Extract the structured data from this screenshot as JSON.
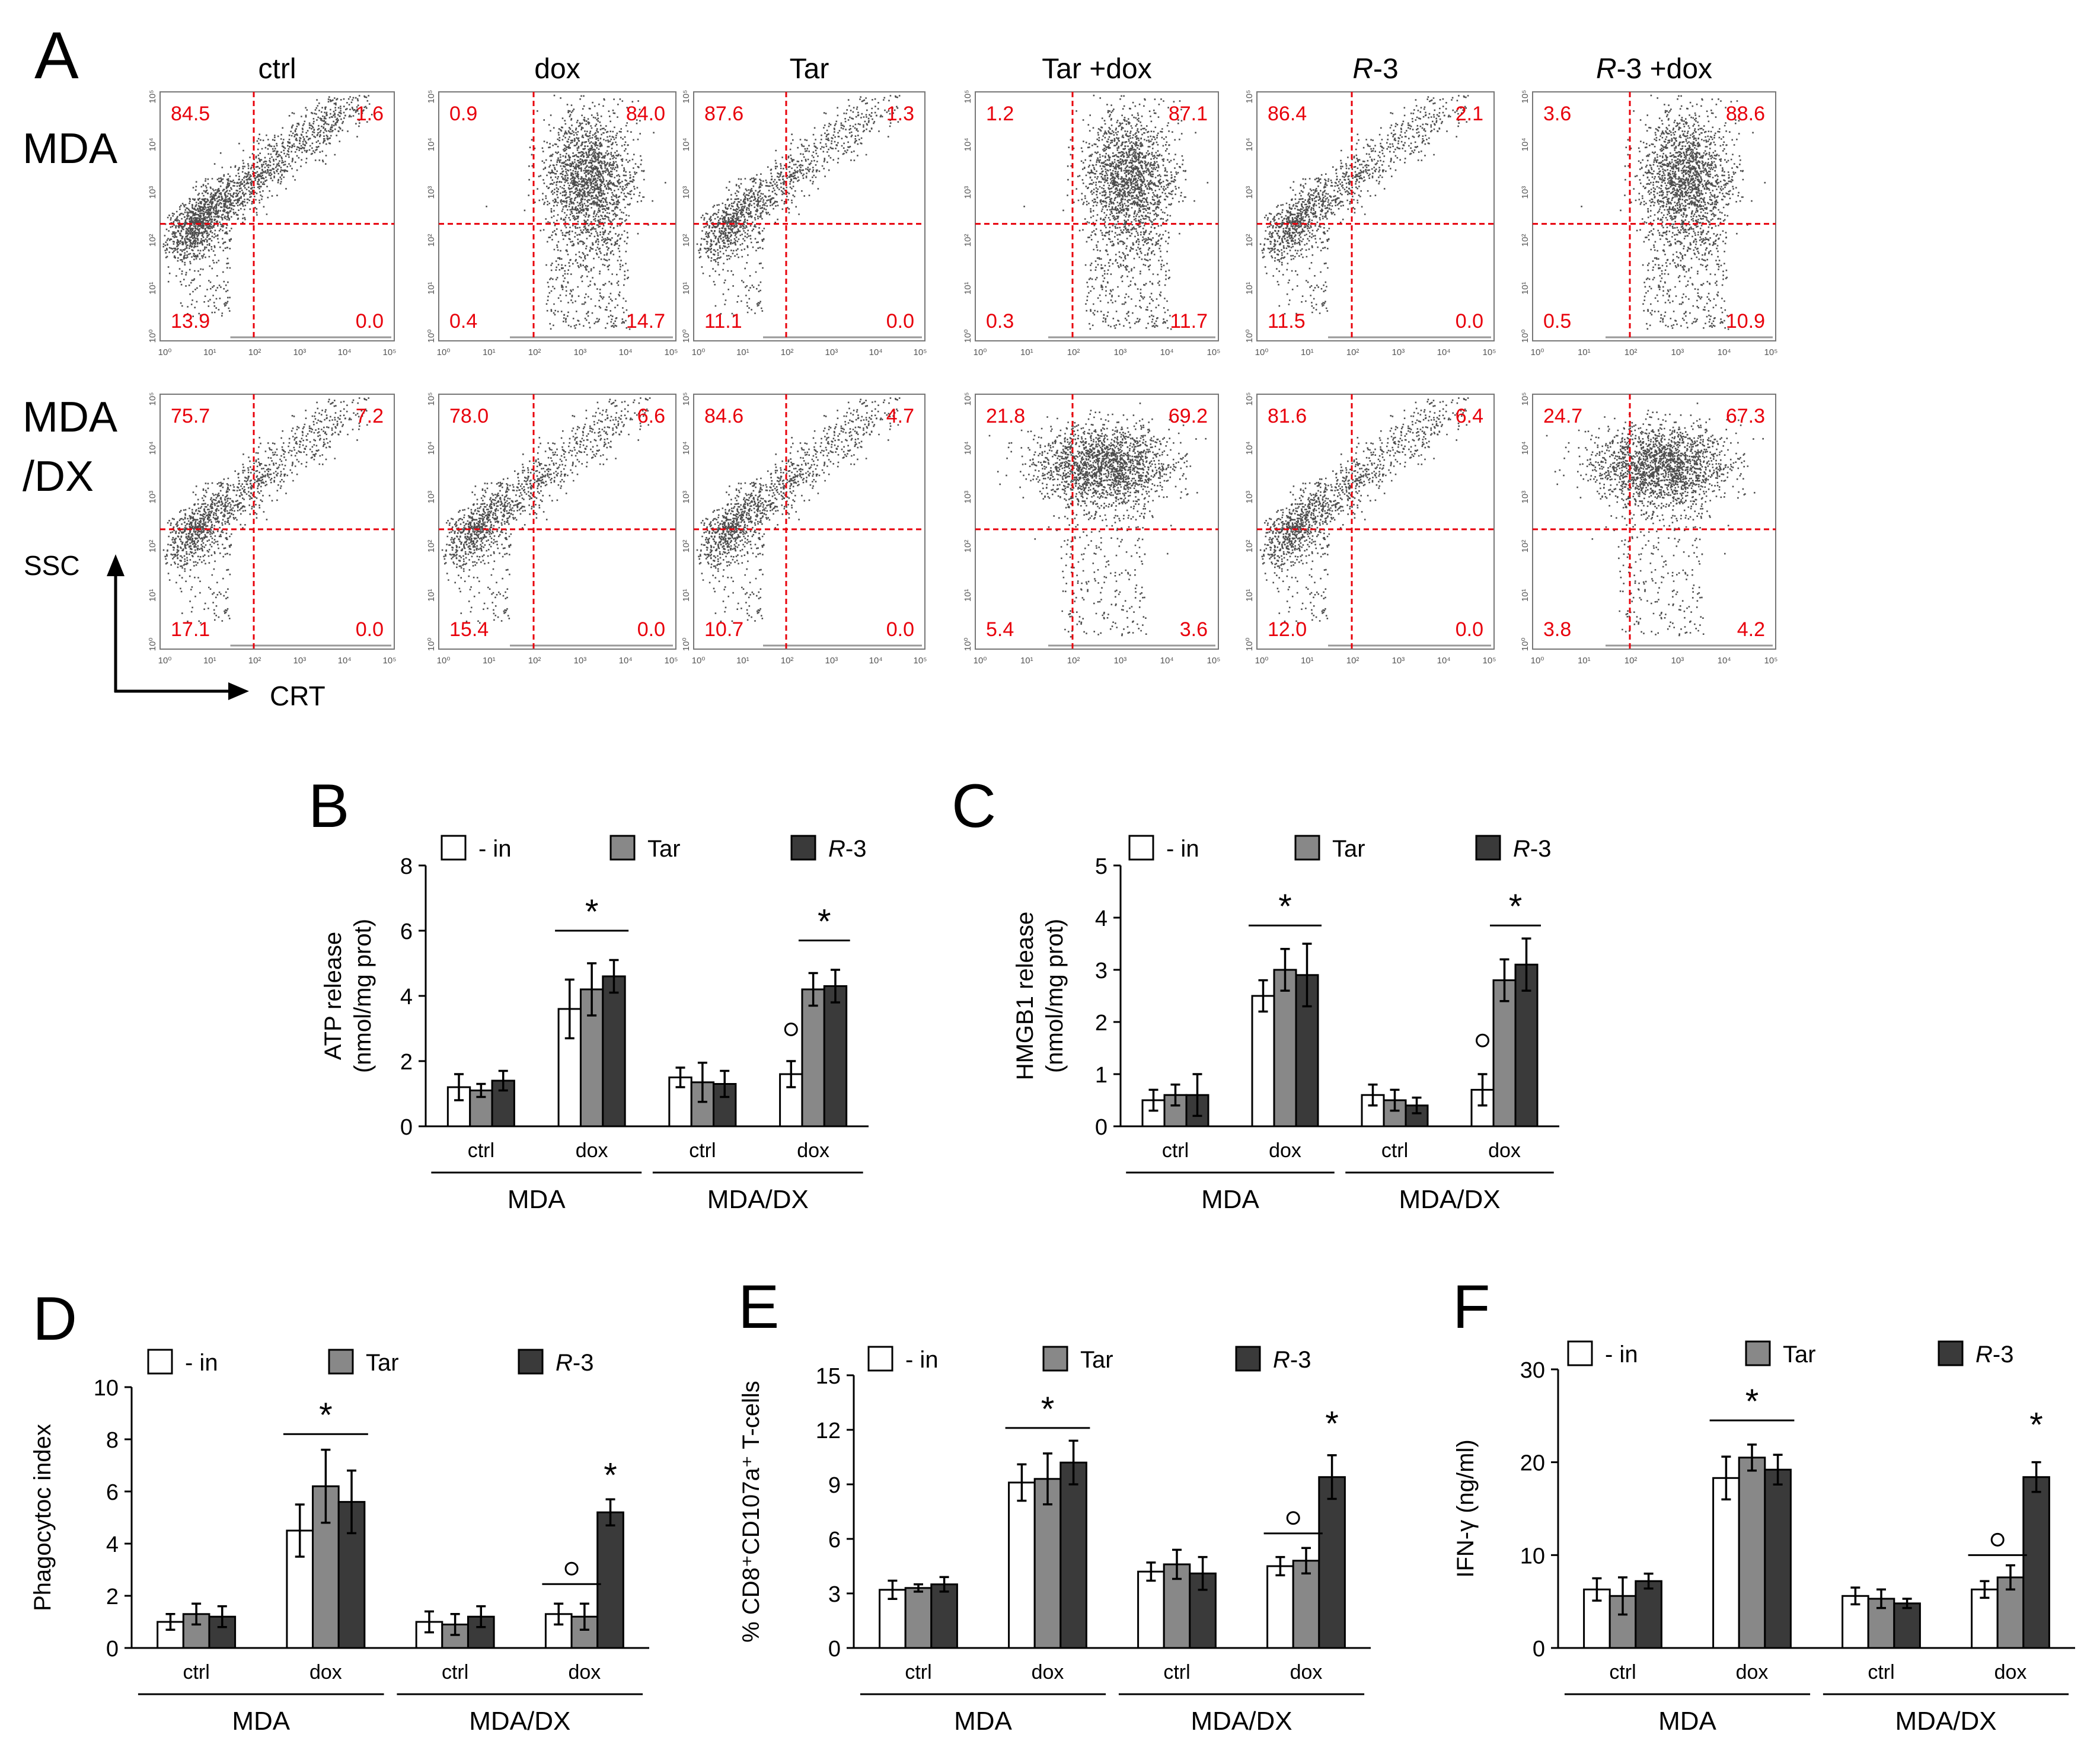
{
  "panel_a": {
    "letter": "A",
    "columns": [
      "ctrl",
      "dox",
      "Tar",
      "Tar +dox",
      "R-3",
      "R-3 +dox"
    ],
    "row_labels": [
      [
        "MDA"
      ],
      [
        "MDA",
        "/DX"
      ]
    ],
    "y_axis_label": "SSC",
    "x_axis_label": "CRT",
    "tick_labels": [
      "10⁰",
      "10¹",
      "10²",
      "10³",
      "10⁴",
      "10⁵"
    ],
    "quadrant_color": "#e8000b",
    "quadrants": [
      [
        {
          "ul": "84.5",
          "ur": "1.6",
          "ll": "13.9",
          "lr": "0.0",
          "pattern": "diag"
        },
        {
          "ul": "0.9",
          "ur": "84.0",
          "ll": "0.4",
          "lr": "14.7",
          "pattern": "right"
        },
        {
          "ul": "87.6",
          "ur": "1.3",
          "ll": "11.1",
          "lr": "0.0",
          "pattern": "diag"
        },
        {
          "ul": "1.2",
          "ur": "87.1",
          "ll": "0.3",
          "lr": "11.7",
          "pattern": "right"
        },
        {
          "ul": "86.4",
          "ur": "2.1",
          "ll": "11.5",
          "lr": "0.0",
          "pattern": "diag"
        },
        {
          "ul": "3.6",
          "ur": "88.6",
          "ll": "0.5",
          "lr": "10.9",
          "pattern": "right"
        }
      ],
      [
        {
          "ul": "75.7",
          "ur": "7.2",
          "ll": "17.1",
          "lr": "0.0",
          "pattern": "diag"
        },
        {
          "ul": "78.0",
          "ur": "6.6",
          "ll": "15.4",
          "lr": "0.0",
          "pattern": "diag"
        },
        {
          "ul": "84.6",
          "ur": "4.7",
          "ll": "10.7",
          "lr": "0.0",
          "pattern": "diag"
        },
        {
          "ul": "21.8",
          "ur": "69.2",
          "ll": "5.4",
          "lr": "3.6",
          "pattern": "center"
        },
        {
          "ul": "81.6",
          "ur": "6.4",
          "ll": "12.0",
          "lr": "0.0",
          "pattern": "diag"
        },
        {
          "ul": "24.7",
          "ur": "67.3",
          "ll": "3.8",
          "lr": "4.2",
          "pattern": "center"
        }
      ]
    ]
  },
  "chart_data": [
    {
      "panel": "B",
      "type": "bar",
      "ylabel": [
        "ATP release",
        "(nmol/mg prot)"
      ],
      "ylim": [
        0,
        8
      ],
      "yticks": [
        "0",
        "2",
        "4",
        "6",
        "8"
      ],
      "legend": [
        "- in",
        "Tar",
        "R-3"
      ],
      "categories": [
        "ctrl",
        "dox",
        "ctrl",
        "dox"
      ],
      "groups": [
        "MDA",
        "MDA/DX"
      ],
      "series": [
        {
          "name": "- in",
          "color": "#ffffff",
          "values": [
            1.2,
            3.6,
            1.5,
            1.6
          ],
          "errors": [
            0.4,
            0.9,
            0.3,
            0.4
          ]
        },
        {
          "name": "Tar",
          "color": "#888888",
          "values": [
            1.1,
            4.2,
            1.35,
            4.2
          ],
          "errors": [
            0.2,
            0.8,
            0.6,
            0.5
          ]
        },
        {
          "name": "R-3",
          "color": "#3a3a3a",
          "values": [
            1.4,
            4.6,
            1.3,
            4.3
          ],
          "errors": [
            0.3,
            0.5,
            0.4,
            0.5
          ]
        }
      ],
      "annotations": [
        {
          "text": "*",
          "cat_from": 1,
          "cat_to": 1,
          "bar_from": 0,
          "bar_to": 2,
          "y": 6.0,
          "line": true
        },
        {
          "text": "*",
          "cat_from": 3,
          "cat_to": 3,
          "bar_from": 1,
          "bar_to": 2,
          "y": 5.7,
          "line": true
        },
        {
          "text": "°",
          "cat_from": 3,
          "cat_to": 3,
          "bar_from": 0,
          "bar_to": 0,
          "y": 2.5,
          "line": false
        }
      ]
    },
    {
      "panel": "C",
      "type": "bar",
      "ylabel": [
        "HMGB1 release",
        "(nmol/mg prot)"
      ],
      "ylim": [
        0,
        5
      ],
      "yticks": [
        "0",
        "1",
        "2",
        "3",
        "4",
        "5"
      ],
      "legend": [
        "- in",
        "Tar",
        "R-3"
      ],
      "categories": [
        "ctrl",
        "dox",
        "ctrl",
        "dox"
      ],
      "groups": [
        "MDA",
        "MDA/DX"
      ],
      "series": [
        {
          "name": "- in",
          "color": "#ffffff",
          "values": [
            0.5,
            2.5,
            0.6,
            0.7
          ],
          "errors": [
            0.2,
            0.3,
            0.2,
            0.3
          ]
        },
        {
          "name": "Tar",
          "color": "#888888",
          "values": [
            0.6,
            3.0,
            0.5,
            2.8
          ],
          "errors": [
            0.2,
            0.4,
            0.2,
            0.4
          ]
        },
        {
          "name": "R-3",
          "color": "#3a3a3a",
          "values": [
            0.6,
            2.9,
            0.4,
            3.1
          ],
          "errors": [
            0.4,
            0.6,
            0.15,
            0.5
          ]
        }
      ],
      "annotations": [
        {
          "text": "*",
          "cat_from": 1,
          "cat_to": 1,
          "bar_from": 0,
          "bar_to": 2,
          "y": 3.85,
          "line": true
        },
        {
          "text": "*",
          "cat_from": 3,
          "cat_to": 3,
          "bar_from": 1,
          "bar_to": 2,
          "y": 3.85,
          "line": true
        },
        {
          "text": "°",
          "cat_from": 3,
          "cat_to": 3,
          "bar_from": 0,
          "bar_to": 0,
          "y": 1.35,
          "line": false
        }
      ]
    },
    {
      "panel": "D",
      "type": "bar",
      "ylabel": [
        "Phagocytoc index"
      ],
      "ylim": [
        0,
        10
      ],
      "yticks": [
        "0",
        "2",
        "4",
        "6",
        "8",
        "10"
      ],
      "legend": [
        "- in",
        "Tar",
        "R-3"
      ],
      "categories": [
        "ctrl",
        "dox",
        "ctrl",
        "dox"
      ],
      "groups": [
        "MDA",
        "MDA/DX"
      ],
      "series": [
        {
          "name": "- in",
          "color": "#ffffff",
          "values": [
            1.0,
            4.5,
            1.0,
            1.3
          ],
          "errors": [
            0.3,
            1.0,
            0.4,
            0.4
          ]
        },
        {
          "name": "Tar",
          "color": "#888888",
          "values": [
            1.3,
            6.2,
            0.9,
            1.2
          ],
          "errors": [
            0.4,
            1.4,
            0.4,
            0.5
          ]
        },
        {
          "name": "R-3",
          "color": "#3a3a3a",
          "values": [
            1.2,
            5.6,
            1.2,
            5.2
          ],
          "errors": [
            0.4,
            1.2,
            0.4,
            0.5
          ]
        }
      ],
      "annotations": [
        {
          "text": "*",
          "cat_from": 1,
          "cat_to": 1,
          "bar_from": 0,
          "bar_to": 2,
          "y": 8.2,
          "line": true
        },
        {
          "text": "°",
          "cat_from": 3,
          "cat_to": 3,
          "bar_from": 0,
          "bar_to": 1,
          "y": 2.45,
          "line": true
        },
        {
          "text": "*",
          "cat_from": 3,
          "cat_to": 3,
          "bar_from": 2,
          "bar_to": 2,
          "y": 5.9,
          "line": false
        }
      ]
    },
    {
      "panel": "E",
      "type": "bar",
      "ylabel": [
        "% CD8⁺CD107a⁺ T-cells"
      ],
      "ylim": [
        0,
        15
      ],
      "yticks": [
        "0",
        "3",
        "6",
        "9",
        "12",
        "15"
      ],
      "legend": [
        "- in",
        "Tar",
        "R-3"
      ],
      "categories": [
        "ctrl",
        "dox",
        "ctrl",
        "dox"
      ],
      "groups": [
        "MDA",
        "MDA/DX"
      ],
      "series": [
        {
          "name": "- in",
          "color": "#ffffff",
          "values": [
            3.2,
            9.1,
            4.2,
            4.5
          ],
          "errors": [
            0.5,
            1.0,
            0.5,
            0.5
          ]
        },
        {
          "name": "Tar",
          "color": "#888888",
          "values": [
            3.3,
            9.3,
            4.6,
            4.8
          ],
          "errors": [
            0.2,
            1.4,
            0.8,
            0.7
          ]
        },
        {
          "name": "R-3",
          "color": "#3a3a3a",
          "values": [
            3.5,
            10.2,
            4.1,
            9.4
          ],
          "errors": [
            0.4,
            1.2,
            0.9,
            1.2
          ]
        }
      ],
      "annotations": [
        {
          "text": "*",
          "cat_from": 1,
          "cat_to": 1,
          "bar_from": 0,
          "bar_to": 2,
          "y": 12.1,
          "line": true
        },
        {
          "text": "°",
          "cat_from": 3,
          "cat_to": 3,
          "bar_from": 0,
          "bar_to": 1,
          "y": 6.3,
          "line": true
        },
        {
          "text": "*",
          "cat_from": 3,
          "cat_to": 3,
          "bar_from": 2,
          "bar_to": 2,
          "y": 11.3,
          "line": false
        }
      ]
    },
    {
      "panel": "F",
      "type": "bar",
      "ylabel": [
        "IFN-γ (ng/ml)"
      ],
      "ylim": [
        0,
        30
      ],
      "yticks": [
        "0",
        "10",
        "20",
        "30"
      ],
      "legend": [
        "- in",
        "Tar",
        "R-3"
      ],
      "categories": [
        "ctrl",
        "dox",
        "ctrl",
        "dox"
      ],
      "groups": [
        "MDA",
        "MDA/DX"
      ],
      "series": [
        {
          "name": "- in",
          "color": "#ffffff",
          "values": [
            6.3,
            18.3,
            5.6,
            6.3
          ],
          "errors": [
            1.2,
            2.3,
            0.9,
            0.9
          ]
        },
        {
          "name": "Tar",
          "color": "#888888",
          "values": [
            5.6,
            20.5,
            5.3,
            7.6
          ],
          "errors": [
            2.0,
            1.4,
            1.0,
            1.3
          ]
        },
        {
          "name": "R-3",
          "color": "#3a3a3a",
          "values": [
            7.2,
            19.2,
            4.8,
            18.4
          ],
          "errors": [
            0.8,
            1.6,
            0.5,
            1.6
          ]
        }
      ],
      "annotations": [
        {
          "text": "*",
          "cat_from": 1,
          "cat_to": 1,
          "bar_from": 0,
          "bar_to": 2,
          "y": 24.5,
          "line": true
        },
        {
          "text": "°",
          "cat_from": 3,
          "cat_to": 3,
          "bar_from": 0,
          "bar_to": 1,
          "y": 10.0,
          "line": true
        },
        {
          "text": "*",
          "cat_from": 3,
          "cat_to": 3,
          "bar_from": 2,
          "bar_to": 2,
          "y": 22.0,
          "line": false
        }
      ]
    }
  ]
}
